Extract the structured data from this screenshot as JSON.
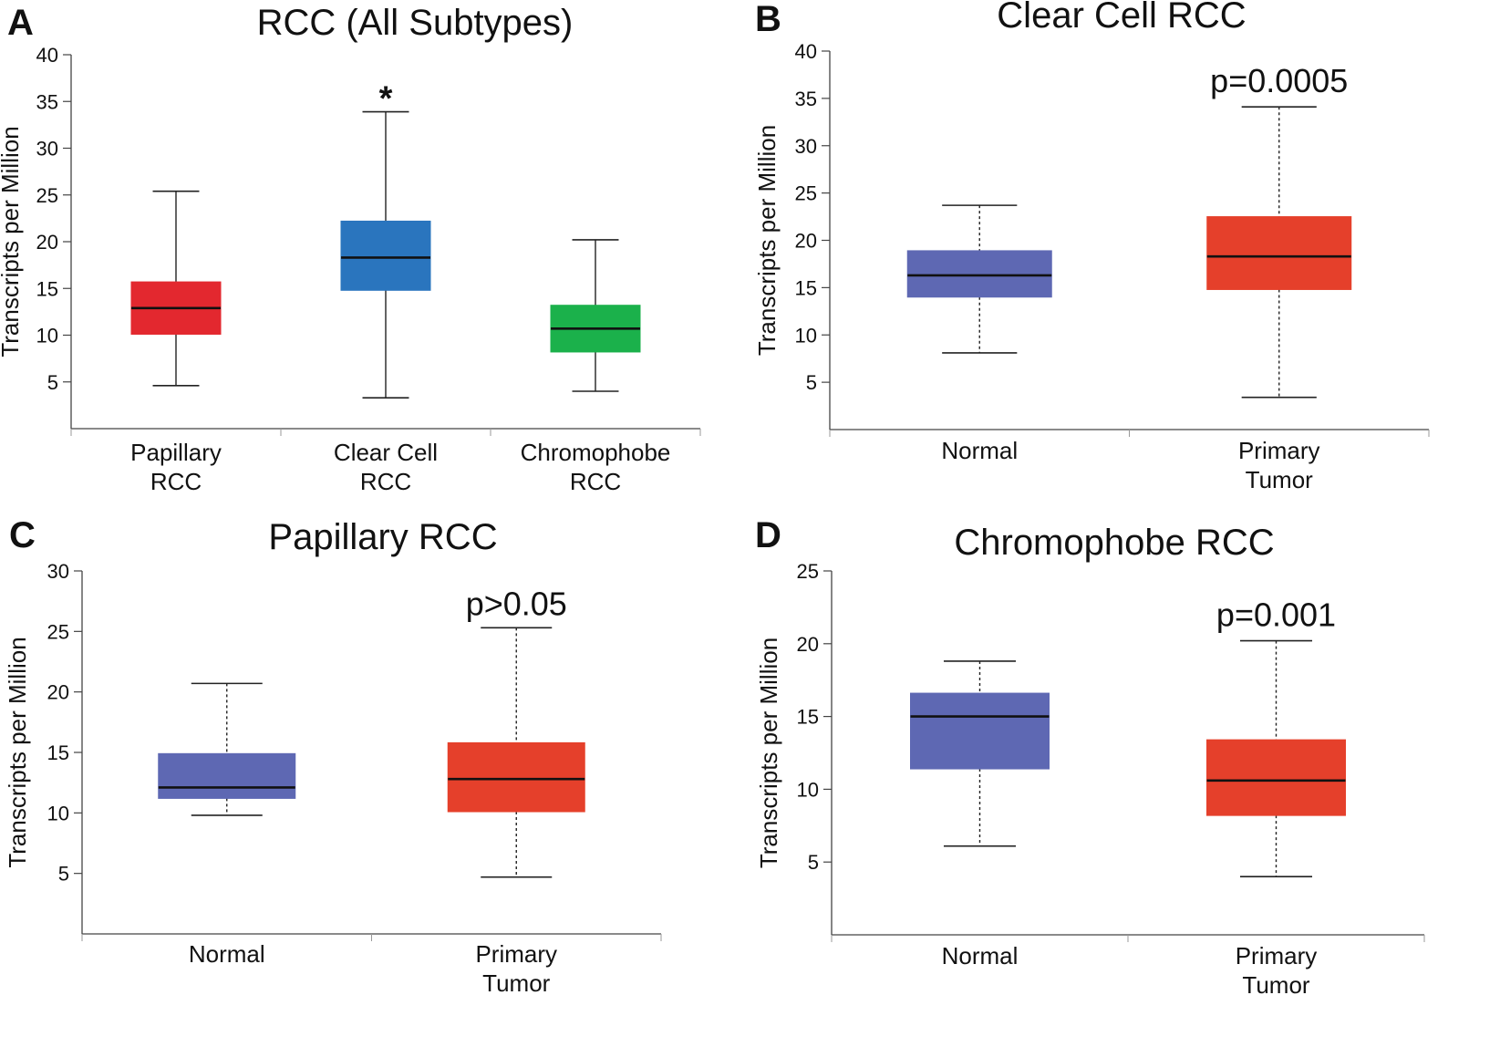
{
  "colors": {
    "red": "#e3282f",
    "blue": "#2a75be",
    "green": "#1bb14b",
    "purple": "#5e68b3",
    "orange_red": "#e5402b",
    "axis": "#444444"
  },
  "chart_data": [
    {
      "panel": "A",
      "type": "box",
      "title": "RCC (All Subtypes)",
      "ylabel": "Transcripts per Million",
      "xlabel": "",
      "ylim": [
        0,
        40
      ],
      "yticks": [
        5,
        10,
        15,
        20,
        25,
        30,
        35,
        40
      ],
      "whisker_style": "solid",
      "annotation": "*",
      "annotation_series": 1,
      "series": [
        {
          "name": "Papillary RCC",
          "label_lines": [
            "Papillary",
            "RCC"
          ],
          "min": 4.6,
          "q1": 10.1,
          "median": 12.9,
          "q3": 15.7,
          "max": 25.4,
          "color": "#e3282f"
        },
        {
          "name": "Clear Cell RCC",
          "label_lines": [
            "Clear Cell",
            "RCC"
          ],
          "min": 3.3,
          "q1": 14.8,
          "median": 18.3,
          "q3": 22.2,
          "max": 33.9,
          "color": "#2a75be"
        },
        {
          "name": "Chromophobe RCC",
          "label_lines": [
            "Chromophobe",
            "RCC"
          ],
          "min": 4.0,
          "q1": 8.2,
          "median": 10.7,
          "q3": 13.2,
          "max": 20.2,
          "color": "#1bb14b"
        }
      ]
    },
    {
      "panel": "B",
      "type": "box",
      "title": "Clear Cell RCC",
      "ylabel": "Transcripts per Million",
      "xlabel": "",
      "ylim": [
        0,
        40
      ],
      "yticks": [
        5,
        10,
        15,
        20,
        25,
        30,
        35,
        40
      ],
      "whisker_style": "dashed",
      "annotation": "p=0.0005",
      "annotation_series": 1,
      "series": [
        {
          "name": "Normal",
          "label_lines": [
            "Normal"
          ],
          "min": 8.1,
          "q1": 14.0,
          "median": 16.3,
          "q3": 18.9,
          "max": 23.7,
          "color": "#5e68b3"
        },
        {
          "name": "Primary Tumor",
          "label_lines": [
            "Primary",
            "Tumor"
          ],
          "min": 3.4,
          "q1": 14.8,
          "median": 18.3,
          "q3": 22.5,
          "max": 34.1,
          "color": "#e5402b"
        }
      ]
    },
    {
      "panel": "C",
      "type": "box",
      "title": "Papillary RCC",
      "ylabel": "Transcripts per Million",
      "xlabel": "",
      "ylim": [
        0,
        30
      ],
      "yticks": [
        5,
        10,
        15,
        20,
        25,
        30
      ],
      "whisker_style": "dashed",
      "annotation": "p>0.05",
      "annotation_series": 1,
      "series": [
        {
          "name": "Normal",
          "label_lines": [
            "Normal"
          ],
          "min": 9.8,
          "q1": 11.2,
          "median": 12.1,
          "q3": 14.9,
          "max": 20.7,
          "color": "#5e68b3"
        },
        {
          "name": "Primary Tumor",
          "label_lines": [
            "Primary",
            "Tumor"
          ],
          "min": 4.7,
          "q1": 10.1,
          "median": 12.8,
          "q3": 15.8,
          "max": 25.3,
          "color": "#e5402b"
        }
      ]
    },
    {
      "panel": "D",
      "type": "box",
      "title": "Chromophobe RCC",
      "ylabel": "Transcripts per Million",
      "xlabel": "",
      "ylim": [
        0,
        25
      ],
      "yticks": [
        5,
        10,
        15,
        20,
        25
      ],
      "whisker_style": "dashed",
      "annotation": "p=0.001",
      "annotation_series": 1,
      "series": [
        {
          "name": "Normal",
          "label_lines": [
            "Normal"
          ],
          "min": 6.1,
          "q1": 11.4,
          "median": 15.0,
          "q3": 16.6,
          "max": 18.8,
          "color": "#5e68b3"
        },
        {
          "name": "Primary Tumor",
          "label_lines": [
            "Primary",
            "Tumor"
          ],
          "min": 4.0,
          "q1": 8.2,
          "median": 10.6,
          "q3": 13.4,
          "max": 20.2,
          "color": "#e5402b"
        }
      ]
    }
  ]
}
